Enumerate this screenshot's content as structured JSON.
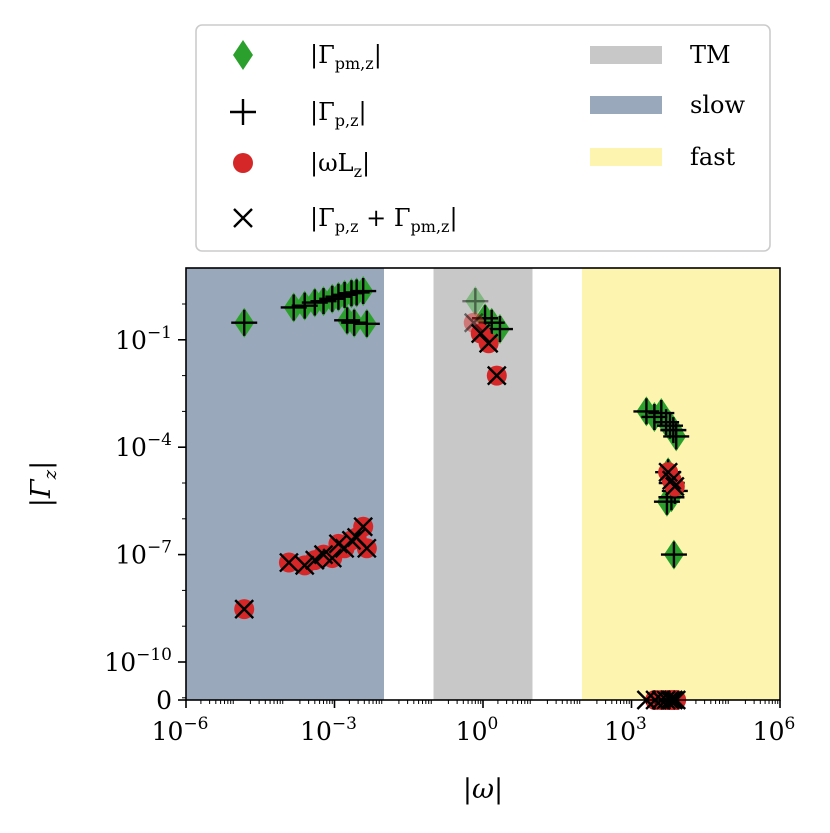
{
  "chart_data": {
    "type": "scatter",
    "xscale": "log",
    "yscale": "symlog",
    "xlim": [
      1e-06,
      1000000.0
    ],
    "ylim": [
      0,
      20
    ],
    "xlabel": "|ω|",
    "ylabel": "|Γ",
    "ylabel_sub": "z",
    "xticks": [
      {
        "value": 1e-06,
        "base": "10",
        "exp": "−6"
      },
      {
        "value": 0.001,
        "base": "10",
        "exp": "−3"
      },
      {
        "value": 1,
        "base": "10",
        "exp": "0"
      },
      {
        "value": 1000.0,
        "base": "10",
        "exp": "3"
      },
      {
        "value": 1000000.0,
        "base": "10",
        "exp": "6"
      }
    ],
    "yticks": [
      {
        "value": 0,
        "base": "0",
        "exp": ""
      },
      {
        "value": 1e-10,
        "base": "10",
        "exp": "−10"
      },
      {
        "value": 1e-07,
        "base": "10",
        "exp": "−7"
      },
      {
        "value": 0.0001,
        "base": "10",
        "exp": "−4"
      },
      {
        "value": 0.1,
        "base": "10",
        "exp": "−1"
      }
    ],
    "regions": [
      {
        "name": "slow",
        "x0": 1e-06,
        "x1": 0.01,
        "color": "#9aa8bb"
      },
      {
        "name": "TM",
        "x0": 0.1,
        "x1": 10,
        "color": "#c8c8c8"
      },
      {
        "name": "fast",
        "x0": 100,
        "x1": 1000000.0,
        "color": "#fdf4b0"
      }
    ],
    "legend": {
      "placement": "top",
      "entries": [
        {
          "marker": "diamond",
          "color": "#2ca02c",
          "label": "|Γ",
          "sub": "pm,z",
          "tail": "|"
        },
        {
          "marker": "plus",
          "color": "#000000",
          "label": "|Γ",
          "sub": "p,z",
          "tail": "|"
        },
        {
          "marker": "circle",
          "color": "#d62728",
          "label": "|ωL",
          "sub": "z",
          "tail": "|"
        },
        {
          "marker": "x",
          "color": "#000000",
          "label": "|Γ",
          "sub": "p,z",
          "tail": " + Γ",
          "sub2": "pm,z",
          "tail2": "|"
        },
        {
          "marker": "patch",
          "color": "#c8c8c8",
          "label": "TM"
        },
        {
          "marker": "patch",
          "color": "#9aa8bb",
          "label": "slow"
        },
        {
          "marker": "patch",
          "color": "#fdf4b0",
          "label": "fast"
        }
      ]
    },
    "series": [
      {
        "name": "|Γ_pm,z|",
        "marker": "diamond",
        "color": "#2ca02c",
        "x": [
          1.5e-05,
          0.00015,
          0.00025,
          0.0004,
          0.0006,
          0.0009,
          0.0012,
          0.0016,
          0.0022,
          0.0028,
          0.0038,
          0.0018,
          0.0025,
          0.0045,
          0.7,
          1.1,
          1.5,
          2.2,
          2000,
          2900,
          4000,
          5000,
          6000,
          7000,
          8000,
          5500,
          6500,
          7500,
          5200,
          6400,
          7200
        ],
        "y": [
          0.3,
          0.8,
          0.9,
          1.1,
          1.2,
          1.4,
          1.6,
          1.8,
          2.0,
          2.1,
          2.3,
          0.35,
          0.3,
          0.28,
          1.2,
          0.4,
          0.3,
          0.2,
          0.001,
          0.0007,
          0.0009,
          0.0005,
          0.0004,
          0.0003,
          0.0002,
          2e-05,
          1e-05,
          6e-06,
          3e-06,
          4e-06,
          1e-07
        ],
        "alpha": [
          1,
          1,
          1,
          1,
          1,
          1,
          1,
          1,
          1,
          1,
          1,
          1,
          1,
          1,
          0.45,
          1,
          1,
          1,
          1,
          1,
          1,
          1,
          1,
          1,
          1,
          1,
          1,
          1,
          1,
          1,
          1
        ]
      },
      {
        "name": "|Γ_p,z|",
        "marker": "plus",
        "color": "#000000",
        "x": [
          1.5e-05,
          0.00015,
          0.00025,
          0.0004,
          0.0006,
          0.0009,
          0.0012,
          0.0016,
          0.0022,
          0.0028,
          0.0038,
          0.0018,
          0.0025,
          0.0045,
          0.7,
          1.1,
          1.5,
          2.2,
          2000,
          2900,
          4000,
          5000,
          6000,
          7000,
          8000,
          5500,
          6500,
          7500,
          5200,
          6400,
          7200
        ],
        "y": [
          0.3,
          0.8,
          0.9,
          1.1,
          1.2,
          1.4,
          1.6,
          1.8,
          2.0,
          2.1,
          2.3,
          0.35,
          0.3,
          0.28,
          1.2,
          0.4,
          0.3,
          0.2,
          0.001,
          0.0007,
          0.0009,
          0.0005,
          0.0004,
          0.0003,
          0.0002,
          2e-05,
          1e-05,
          6e-06,
          3e-06,
          4e-06,
          1e-07
        ],
        "alpha": [
          1,
          1,
          1,
          1,
          1,
          1,
          1,
          1,
          1,
          1,
          1,
          1,
          1,
          1,
          0.45,
          1,
          1,
          1,
          1,
          1,
          1,
          1,
          1,
          1,
          1,
          1,
          1,
          1,
          1,
          1,
          1
        ]
      },
      {
        "name": "|ωL_z|",
        "marker": "circle",
        "color": "#d62728",
        "x": [
          1.5e-05,
          0.00012,
          0.00025,
          0.0004,
          0.0006,
          0.0009,
          0.0012,
          0.0016,
          0.0022,
          0.0028,
          0.0038,
          0.0045,
          0.65,
          0.9,
          1.3,
          1.9,
          3000,
          4000,
          5000,
          6000,
          7000,
          8000,
          5500,
          6500,
          7500
        ],
        "y": [
          3e-09,
          6e-08,
          5e-08,
          7e-08,
          1e-07,
          8e-08,
          2e-07,
          1.5e-07,
          2.5e-07,
          3e-07,
          6e-07,
          1.5e-07,
          0.3,
          0.15,
          0.08,
          0.01,
          0,
          0,
          0,
          0,
          0,
          0,
          2e-05,
          1.2e-05,
          8e-06
        ],
        "alpha": [
          1,
          1,
          1,
          1,
          1,
          1,
          1,
          1,
          1,
          1,
          1,
          1,
          0.5,
          1,
          1,
          1,
          1,
          1,
          1,
          1,
          1,
          1,
          1,
          1,
          1
        ]
      },
      {
        "name": "|Γ_p,z + Γ_pm,z|",
        "marker": "x",
        "color": "#000000",
        "x": [
          1.5e-05,
          0.00012,
          0.00025,
          0.0004,
          0.0006,
          0.0009,
          0.0012,
          0.0016,
          0.0022,
          0.0028,
          0.0038,
          0.0045,
          0.65,
          0.9,
          1.3,
          1.9,
          2000,
          3000,
          4000,
          5000,
          6000,
          7000,
          8000,
          5500,
          6500,
          7500
        ],
        "y": [
          3e-09,
          6e-08,
          5e-08,
          7e-08,
          1e-07,
          8e-08,
          2e-07,
          1.5e-07,
          2.5e-07,
          3e-07,
          6e-07,
          1.5e-07,
          0.3,
          0.15,
          0.08,
          0.01,
          0,
          0,
          0,
          0,
          0,
          0,
          0,
          2e-05,
          1.2e-05,
          8e-06
        ],
        "alpha": [
          1,
          1,
          1,
          1,
          1,
          1,
          1,
          1,
          1,
          1,
          1,
          1,
          0.5,
          1,
          1,
          1,
          1,
          1,
          1,
          1,
          1,
          1,
          1,
          1,
          1,
          1
        ]
      }
    ]
  }
}
